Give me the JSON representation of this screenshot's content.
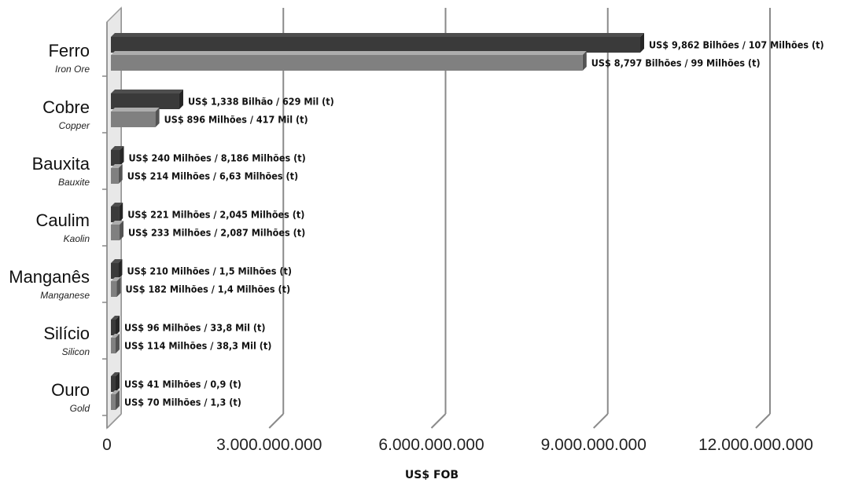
{
  "chart_data": {
    "type": "bar",
    "orientation": "horizontal",
    "categories": [
      {
        "pt": "Ferro",
        "en": "Iron Ore"
      },
      {
        "pt": "Cobre",
        "en": "Copper"
      },
      {
        "pt": "Bauxita",
        "en": "Bauxite"
      },
      {
        "pt": "Caulim",
        "en": "Kaolin"
      },
      {
        "pt": "Manganês",
        "en": "Manganese"
      },
      {
        "pt": "Silício",
        "en": "Silicon"
      },
      {
        "pt": "Ouro",
        "en": "Gold"
      }
    ],
    "series": [
      {
        "color": "#3a3a3a",
        "values": [
          9862000000,
          1338000000,
          240000000,
          221000000,
          210000000,
          96000000,
          41000000
        ],
        "labels": [
          "US$ 9,862 Bilhões / 107 Milhões (t)",
          "US$ 1,338 Bilhão / 629 Mil (t)",
          "US$ 240 Milhões / 8,186 Milhões (t)",
          "US$ 221 Milhões / 2,045 Milhões (t)",
          "US$ 210 Milhões / 1,5 Milhões (t)",
          "US$ 96 Milhões / 33,8 Mil (t)",
          "US$ 41 Milhões / 0,9 (t)"
        ]
      },
      {
        "color": "#808080",
        "values": [
          8797000000,
          896000000,
          214000000,
          233000000,
          182000000,
          114000000,
          70000000
        ],
        "labels": [
          "US$ 8,797 Bilhões / 99 Milhões (t)",
          "US$ 896 Milhões / 417 Mil (t)",
          "US$ 214 Milhões / 6,63 Milhões (t)",
          "US$ 233 Milhões / 2,087 Milhões (t)",
          "US$ 182 Milhões / 1,4 Milhões (t)",
          "US$ 114 Milhões / 38,3 Mil (t)",
          "US$ 70 Milhões / 1,3 (t)"
        ]
      }
    ],
    "x_ticks": [
      0,
      3000000000,
      6000000000,
      9000000000,
      12000000000
    ],
    "x_tick_labels": [
      "0",
      "3.000.000.000",
      "6.000.000.000",
      "9.000.000.000",
      "12.000.000.000"
    ],
    "xlim": [
      0,
      12000000000
    ],
    "xlabel": "US$ FOB",
    "grid": true,
    "three_d": true
  }
}
